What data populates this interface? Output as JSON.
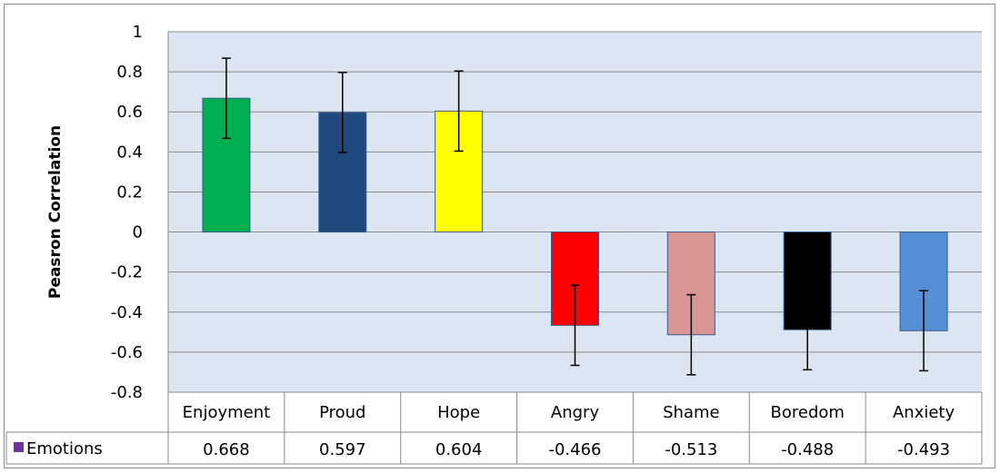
{
  "chart_data": {
    "type": "bar",
    "title": "",
    "xlabel": "",
    "ylabel": "Peasron Correlation",
    "ylim": [
      -0.8,
      1
    ],
    "yticks": [
      1,
      0.8,
      0.6,
      0.4,
      0.2,
      0,
      -0.2,
      -0.4,
      -0.6,
      -0.8
    ],
    "grid": true,
    "categories": [
      "Enjoyment",
      "Proud",
      "Hope",
      "Angry",
      "Shame",
      "Boredom",
      "Anxiety"
    ],
    "series": [
      {
        "name": "Emotions",
        "values": [
          0.668,
          0.597,
          0.604,
          -0.466,
          -0.513,
          -0.488,
          -0.493
        ],
        "value_labels": [
          "0.668",
          "0.597",
          "0.604",
          "-0.466",
          "-0.513",
          "-0.488",
          "-0.493"
        ],
        "error": [
          0.2,
          0.2,
          0.2,
          0.2,
          0.2,
          0.2,
          0.2
        ],
        "legend_color": "#7030a0"
      }
    ],
    "bar_colors": [
      "#00b050",
      "#1f497d",
      "#ffff00",
      "#ff0000",
      "#d99694",
      "#000000",
      "#558ed5"
    ],
    "plot_background": "#dce6f2",
    "legend": "data-table"
  }
}
